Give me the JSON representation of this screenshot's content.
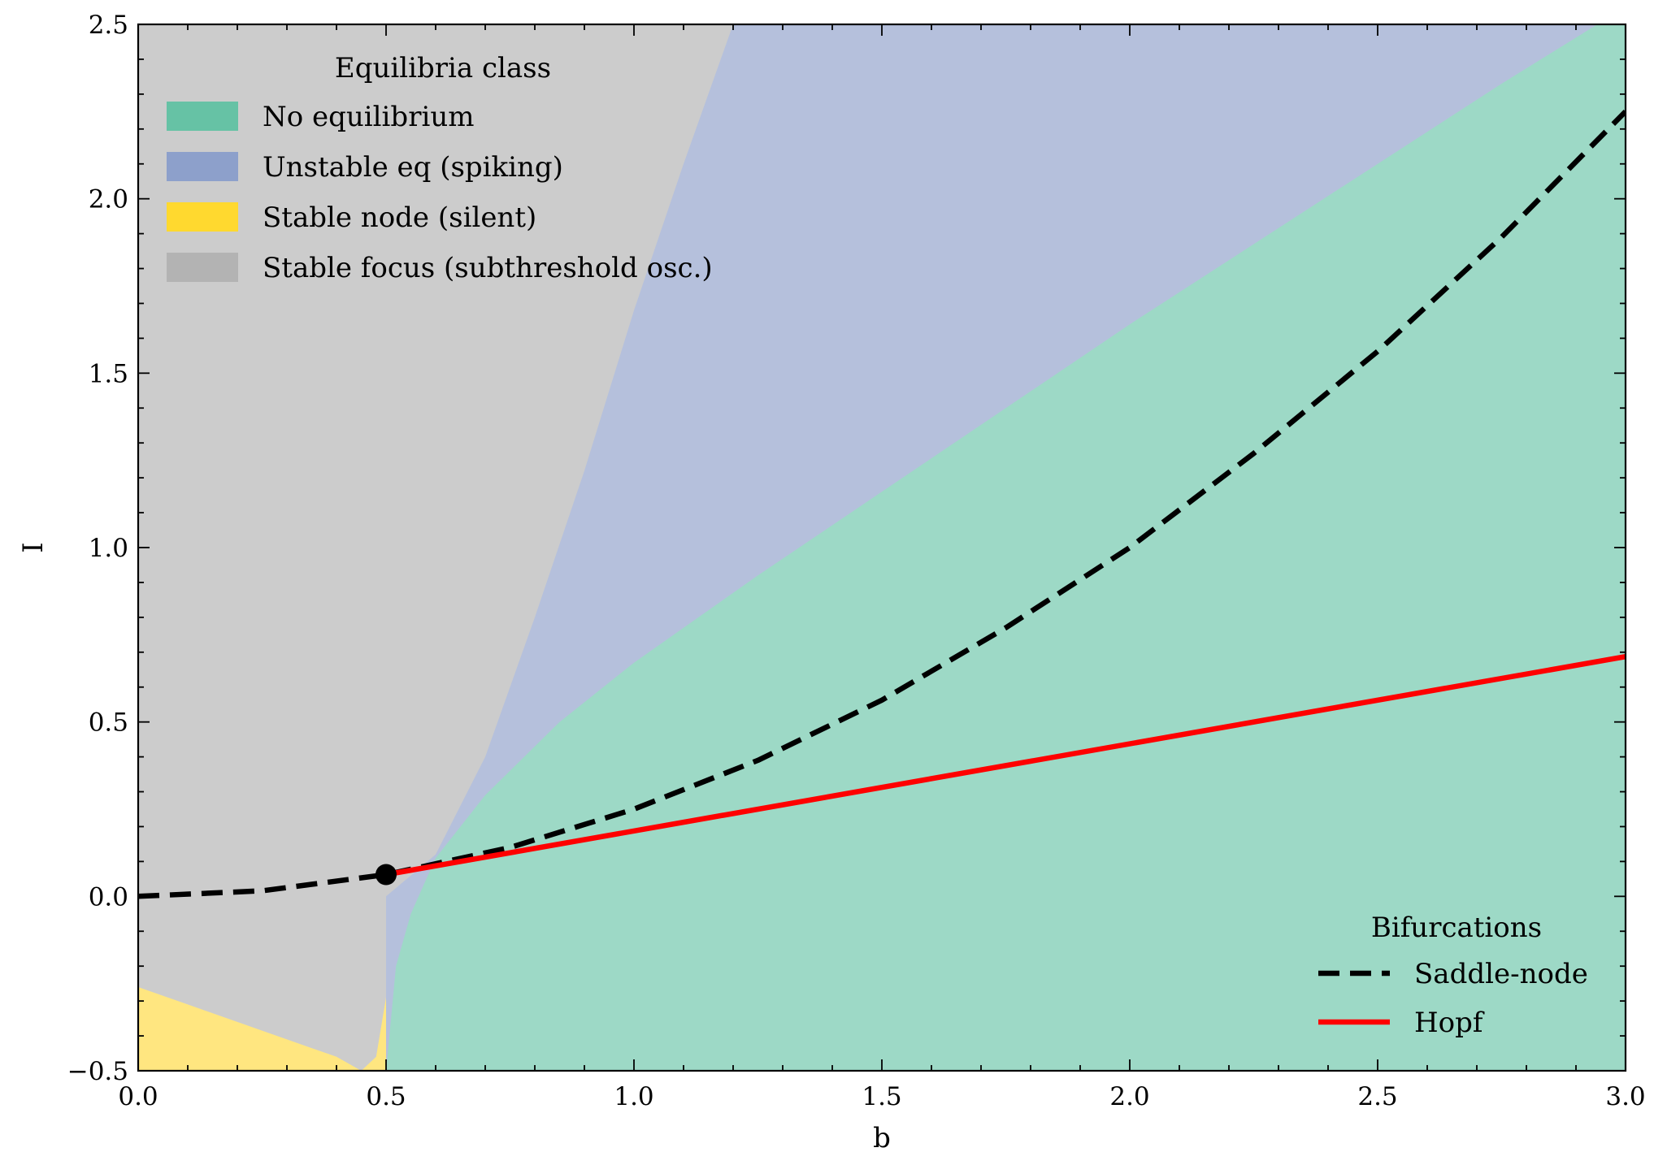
{
  "chart_data": {
    "type": "area",
    "title": "",
    "xlabel": "b",
    "ylabel": "I",
    "xlim": [
      0.0,
      3.0
    ],
    "ylim": [
      -0.5,
      2.5
    ],
    "x_ticks": [
      "0.0",
      "0.5",
      "1.0",
      "1.5",
      "2.0",
      "2.5",
      "3.0"
    ],
    "x_tick_values": [
      0.0,
      0.5,
      1.0,
      1.5,
      2.0,
      2.5,
      3.0
    ],
    "y_ticks": [
      "−0.5",
      "0.0",
      "0.5",
      "1.0",
      "1.5",
      "2.0",
      "2.5"
    ],
    "y_tick_values": [
      -0.5,
      0.0,
      0.5,
      1.0,
      1.5,
      2.0,
      2.5
    ],
    "grid": false,
    "regions_legend": {
      "title": "Equilibria class",
      "placement": "top-left",
      "entries": [
        {
          "label": "No equilibrium",
          "color": "#66c2a5"
        },
        {
          "label": "Unstable eq (spiking)",
          "color": "#8da0cb"
        },
        {
          "label": "Stable node (silent)",
          "color": "#ffd92f"
        },
        {
          "label": "Stable focus (subthreshold osc.)",
          "color": "#b3b3b3"
        }
      ]
    },
    "region_colors": {
      "no_equilibrium": "#9dd9c6",
      "unstable": "#b5c0dc",
      "stable_node": "#ffe680",
      "stable_focus": "#cccccc"
    },
    "region_boundaries": {
      "focus_unstable": {
        "b": [
          0.5,
          0.55,
          0.6,
          0.7,
          0.8,
          0.9,
          1.0,
          1.1,
          1.2
        ],
        "I": [
          0.0,
          0.06,
          0.12,
          0.4,
          0.8,
          1.22,
          1.68,
          2.1,
          2.5
        ]
      },
      "unstable_noeq": {
        "b": [
          0.5,
          0.52,
          0.55,
          0.6,
          0.7,
          0.85,
          1.0,
          1.25,
          1.5,
          1.75,
          2.0,
          2.25,
          2.5,
          2.75,
          3.0
        ],
        "I": [
          -0.5,
          -0.2,
          -0.05,
          0.11,
          0.29,
          0.5,
          0.67,
          0.92,
          1.16,
          1.4,
          1.64,
          1.87,
          2.1,
          2.33,
          2.55
        ]
      },
      "node_focus": {
        "b": [
          0.0,
          0.1,
          0.2,
          0.3,
          0.4,
          0.45,
          0.48,
          0.5
        ],
        "I": [
          -0.26,
          -0.31,
          -0.36,
          -0.41,
          -0.46,
          -0.5,
          -0.46,
          -0.29
        ]
      }
    },
    "bifurcation_legend": {
      "title": "Bifurcations",
      "placement": "bottom-right"
    },
    "series": [
      {
        "name": "Saddle-node",
        "color": "#000000",
        "style": "dashed",
        "x": [
          0.0,
          0.25,
          0.5,
          0.75,
          1.0,
          1.25,
          1.5,
          1.75,
          2.0,
          2.25,
          2.5,
          2.75,
          3.0
        ],
        "y": [
          0.0,
          0.016,
          0.0625,
          0.14,
          0.25,
          0.39,
          0.5625,
          0.77,
          1.0,
          1.27,
          1.5625,
          1.89,
          2.25
        ]
      },
      {
        "name": "Hopf",
        "color": "#ff0000",
        "style": "solid",
        "x": [
          0.5,
          3.0
        ],
        "y": [
          0.0625,
          0.6875
        ]
      }
    ],
    "annotations": [
      {
        "type": "point",
        "x": 0.5,
        "y": 0.0625,
        "color": "#000000"
      }
    ]
  }
}
